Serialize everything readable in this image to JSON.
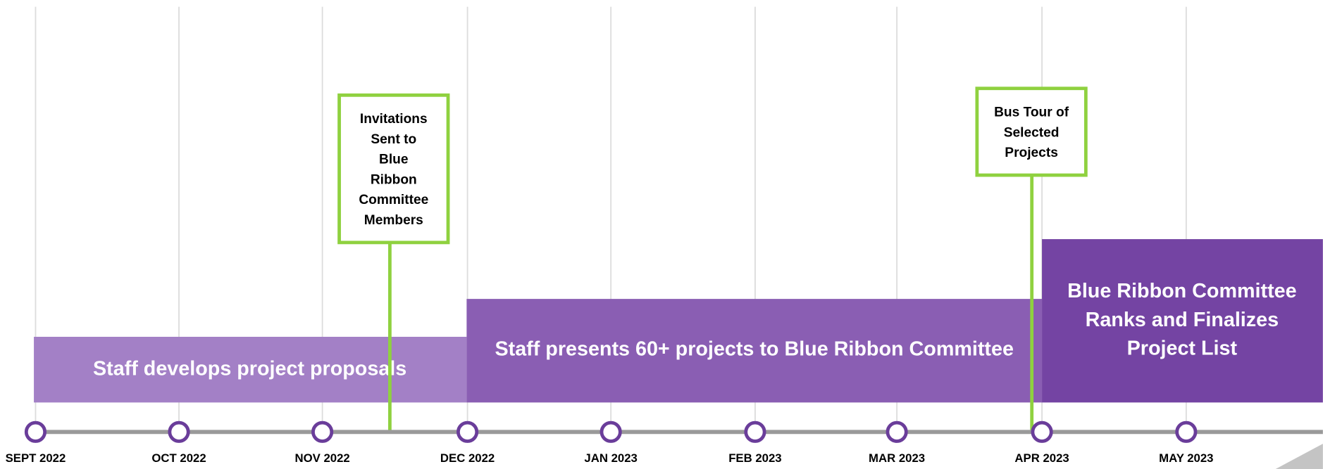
{
  "months": [
    "SEPT 2022",
    "OCT 2022",
    "NOV 2022",
    "DEC 2022",
    "JAN 2023",
    "FEB 2023",
    "MAR 2023",
    "APR 2023",
    "MAY 2023"
  ],
  "phases": [
    {
      "lines": [
        "Staff develops project proposals"
      ]
    },
    {
      "lines": [
        "Staff presents 60+ projects to Blue Ribbon Committee"
      ]
    },
    {
      "lines": [
        "Blue Ribbon Committee",
        "Ranks and Finalizes",
        "Project List"
      ]
    }
  ],
  "milestones": [
    {
      "lines": [
        "Invitations",
        "Sent to",
        "Blue",
        "Ribbon",
        "Committee",
        "Members"
      ]
    },
    {
      "lines": [
        "Bus Tour of",
        "Selected",
        "Projects"
      ]
    }
  ]
}
